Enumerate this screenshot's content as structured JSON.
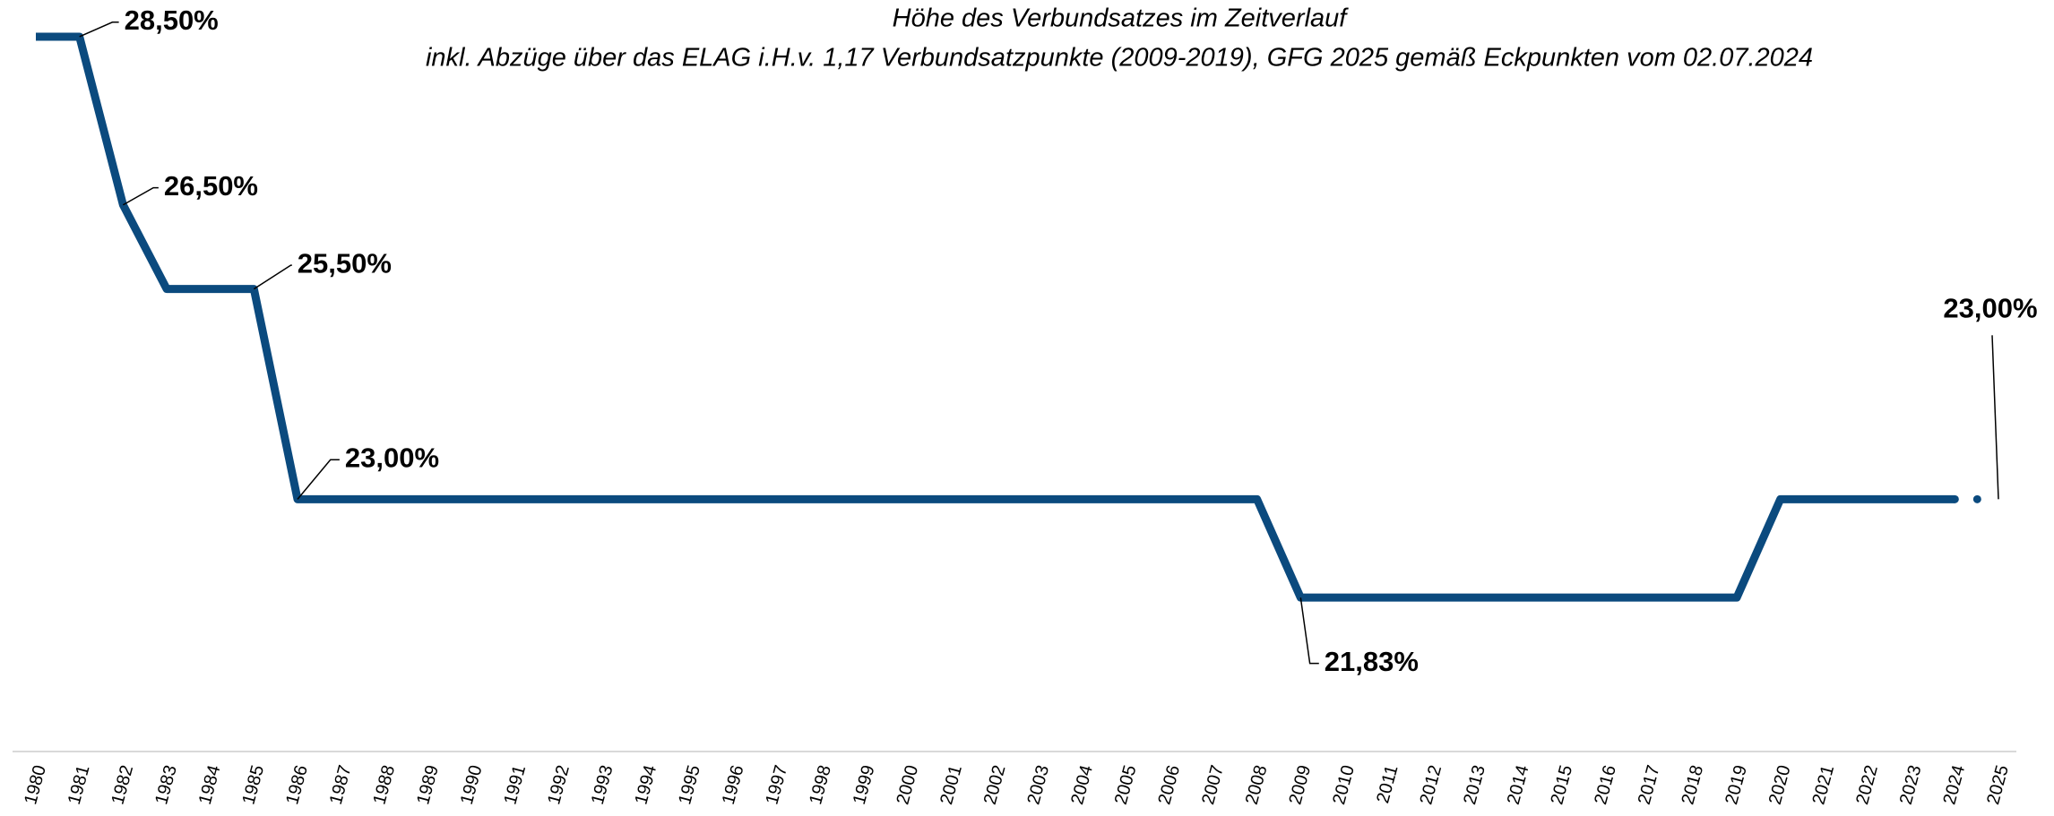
{
  "chart_data": {
    "type": "line",
    "title": "Höhe des Verbundsatzes im Zeitverlauf",
    "subtitle": "inkl. Abzüge über das ELAG i.H.v. 1,17 Verbundsatzpunkte (2009-2019), GFG 2025 gemäß Eckpunkten vom 02.07.2024",
    "categories": [
      "1980",
      "1981",
      "1982",
      "1983",
      "1984",
      "1985",
      "1986",
      "1987",
      "1988",
      "1989",
      "1990",
      "1991",
      "1992",
      "1993",
      "1994",
      "1995",
      "1996",
      "1997",
      "1998",
      "1999",
      "2000",
      "2001",
      "2002",
      "2003",
      "2004",
      "2005",
      "2006",
      "2007",
      "2008",
      "2009",
      "2010",
      "2011",
      "2012",
      "2013",
      "2014",
      "2015",
      "2016",
      "2017",
      "2018",
      "2019",
      "2020",
      "2021",
      "2022",
      "2023",
      "2024",
      "2025"
    ],
    "series": [
      {
        "name": "Verbundsatz",
        "color": "#0b4a7e",
        "values": [
          28.5,
          28.5,
          26.5,
          25.5,
          25.5,
          25.5,
          23,
          23,
          23,
          23,
          23,
          23,
          23,
          23,
          23,
          23,
          23,
          23,
          23,
          23,
          23,
          23,
          23,
          23,
          23,
          23,
          23,
          23,
          23,
          21.83,
          21.83,
          21.83,
          21.83,
          21.83,
          21.83,
          21.83,
          21.83,
          21.83,
          21.83,
          21.83,
          23,
          23,
          23,
          23,
          23,
          23
        ],
        "value_labels": [
          null,
          "28,50%",
          "26,50%",
          null,
          null,
          "25,50%",
          "23,00%",
          null,
          null,
          null,
          null,
          null,
          null,
          null,
          null,
          null,
          null,
          null,
          null,
          null,
          null,
          null,
          null,
          null,
          null,
          null,
          null,
          null,
          null,
          "21,83%",
          null,
          null,
          null,
          null,
          null,
          null,
          null,
          null,
          null,
          null,
          null,
          null,
          null,
          null,
          null,
          "23,00%"
        ]
      }
    ],
    "ylim": [
      20,
      29
    ]
  }
}
